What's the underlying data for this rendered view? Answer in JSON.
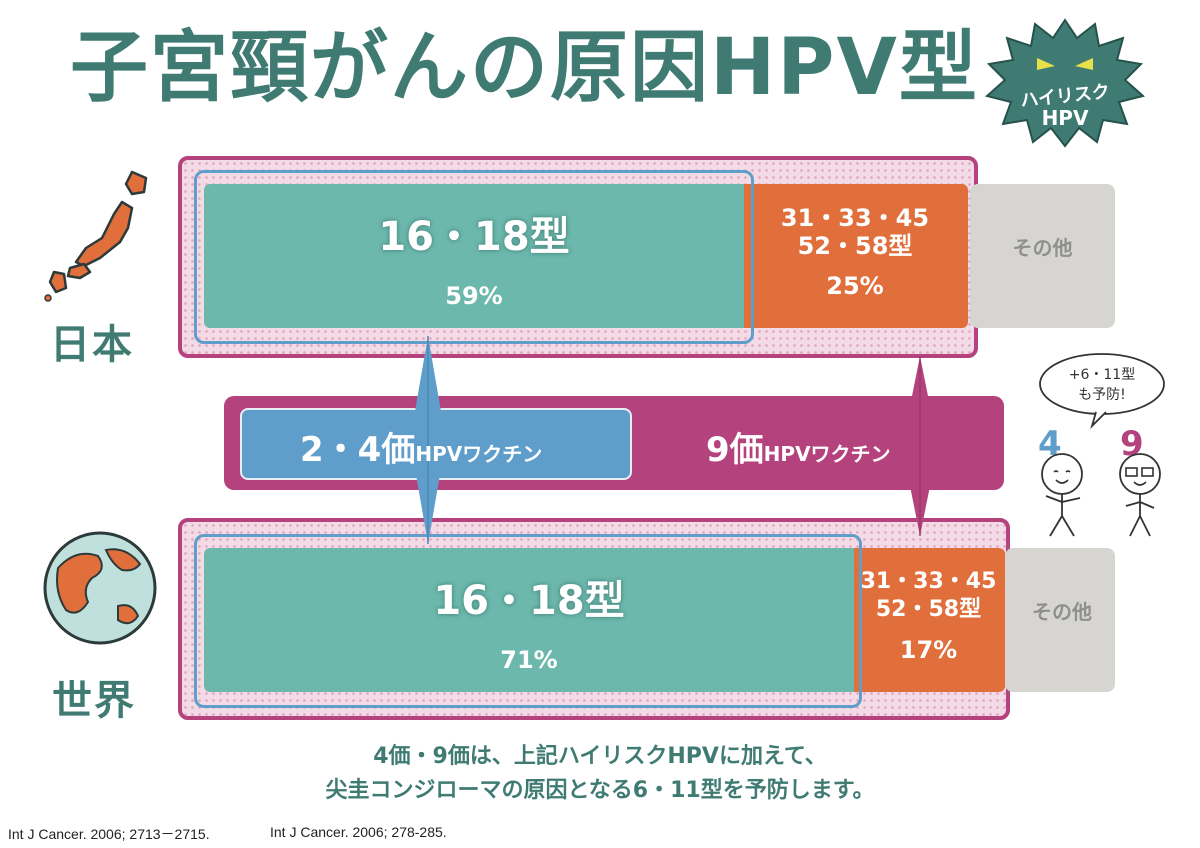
{
  "title": "子宮頸がんの原因HPV型",
  "badge": {
    "line1": "ハイリスク",
    "line2": "HPV"
  },
  "regions": [
    {
      "name": "日本",
      "segments": [
        {
          "label": "16・18型",
          "pct": "59%"
        },
        {
          "label_line1": "31・33・45",
          "label_line2": "52・58型",
          "pct": "25%"
        },
        {
          "label": "その他"
        }
      ]
    },
    {
      "name": "世界",
      "segments": [
        {
          "label": "16・18型",
          "pct": "71%"
        },
        {
          "label_line1": "31・33・45",
          "label_line2": "52・58型",
          "pct": "17%"
        },
        {
          "label": "その他"
        }
      ]
    }
  ],
  "vaccines": {
    "bivalent_quadrivalent": {
      "num": "2・4価",
      "suffix": "HPVワクチン"
    },
    "nonavalent": {
      "num": "9価",
      "suffix": "HPVワクチン"
    }
  },
  "mascots": {
    "speech_line1": "+6・11型",
    "speech_line2": "も予防!",
    "left_number": "4",
    "right_number": "9"
  },
  "note": {
    "line1": "4価・9価は、上記ハイリスクHPVに加えて、",
    "line2": "尖圭コンジローマの原因となる6・11型を予防します。"
  },
  "citations": [
    "Int J Cancer. 2006; 2713－2715.",
    "Int J Cancer. 2006; 278-285."
  ],
  "colors": {
    "hpv16_18": "#6db8ad",
    "hpv31_58": "#e06f3c",
    "other": "#d6d5d1",
    "vaccine_2_4": "#5f9ecb",
    "vaccine_9": "#b4437d",
    "title": "#3f7b73"
  },
  "chart_data": {
    "type": "bar",
    "orientation": "horizontal-stacked",
    "categories": [
      "日本",
      "世界"
    ],
    "series": [
      {
        "name": "16・18型",
        "values": [
          59,
          71
        ]
      },
      {
        "name": "31・33・45・52・58型",
        "values": [
          25,
          17
        ]
      },
      {
        "name": "その他",
        "values": [
          16,
          12
        ]
      }
    ]
  }
}
